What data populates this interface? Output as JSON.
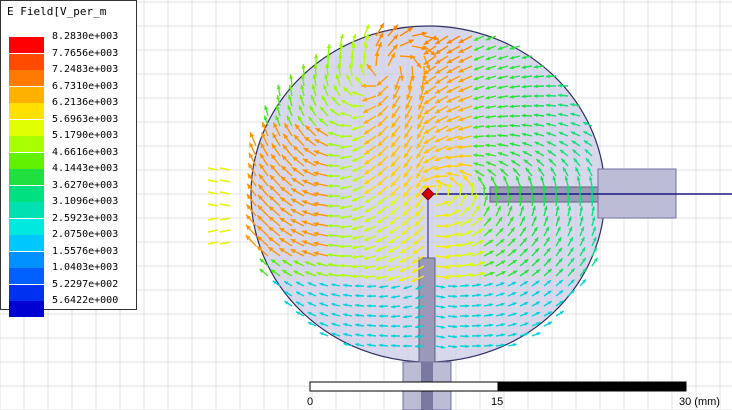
{
  "legend": {
    "title": "E Field[V_per_m",
    "values": [
      "8.2830e+003",
      "7.7656e+003",
      "7.2483e+003",
      "6.7310e+003",
      "6.2136e+003",
      "5.6963e+003",
      "5.1790e+003",
      "4.6616e+003",
      "4.1443e+003",
      "3.6270e+003",
      "3.1096e+003",
      "2.5923e+003",
      "2.0750e+003",
      "1.5576e+003",
      "1.0403e+003",
      "5.2297e+002",
      "5.6422e+000"
    ],
    "colors": [
      "#ff0000",
      "#ff4a00",
      "#ff7a00",
      "#ffb000",
      "#ffe000",
      "#e0ff00",
      "#a8ff00",
      "#60f000",
      "#20e040",
      "#00e080",
      "#00e0b0",
      "#00e8e0",
      "#00c8ff",
      "#0090ff",
      "#0060ff",
      "#0030f0",
      "#0000d0"
    ]
  },
  "scale_bar": {
    "labels": [
      "0",
      "15",
      "30 (mm)"
    ]
  }
}
